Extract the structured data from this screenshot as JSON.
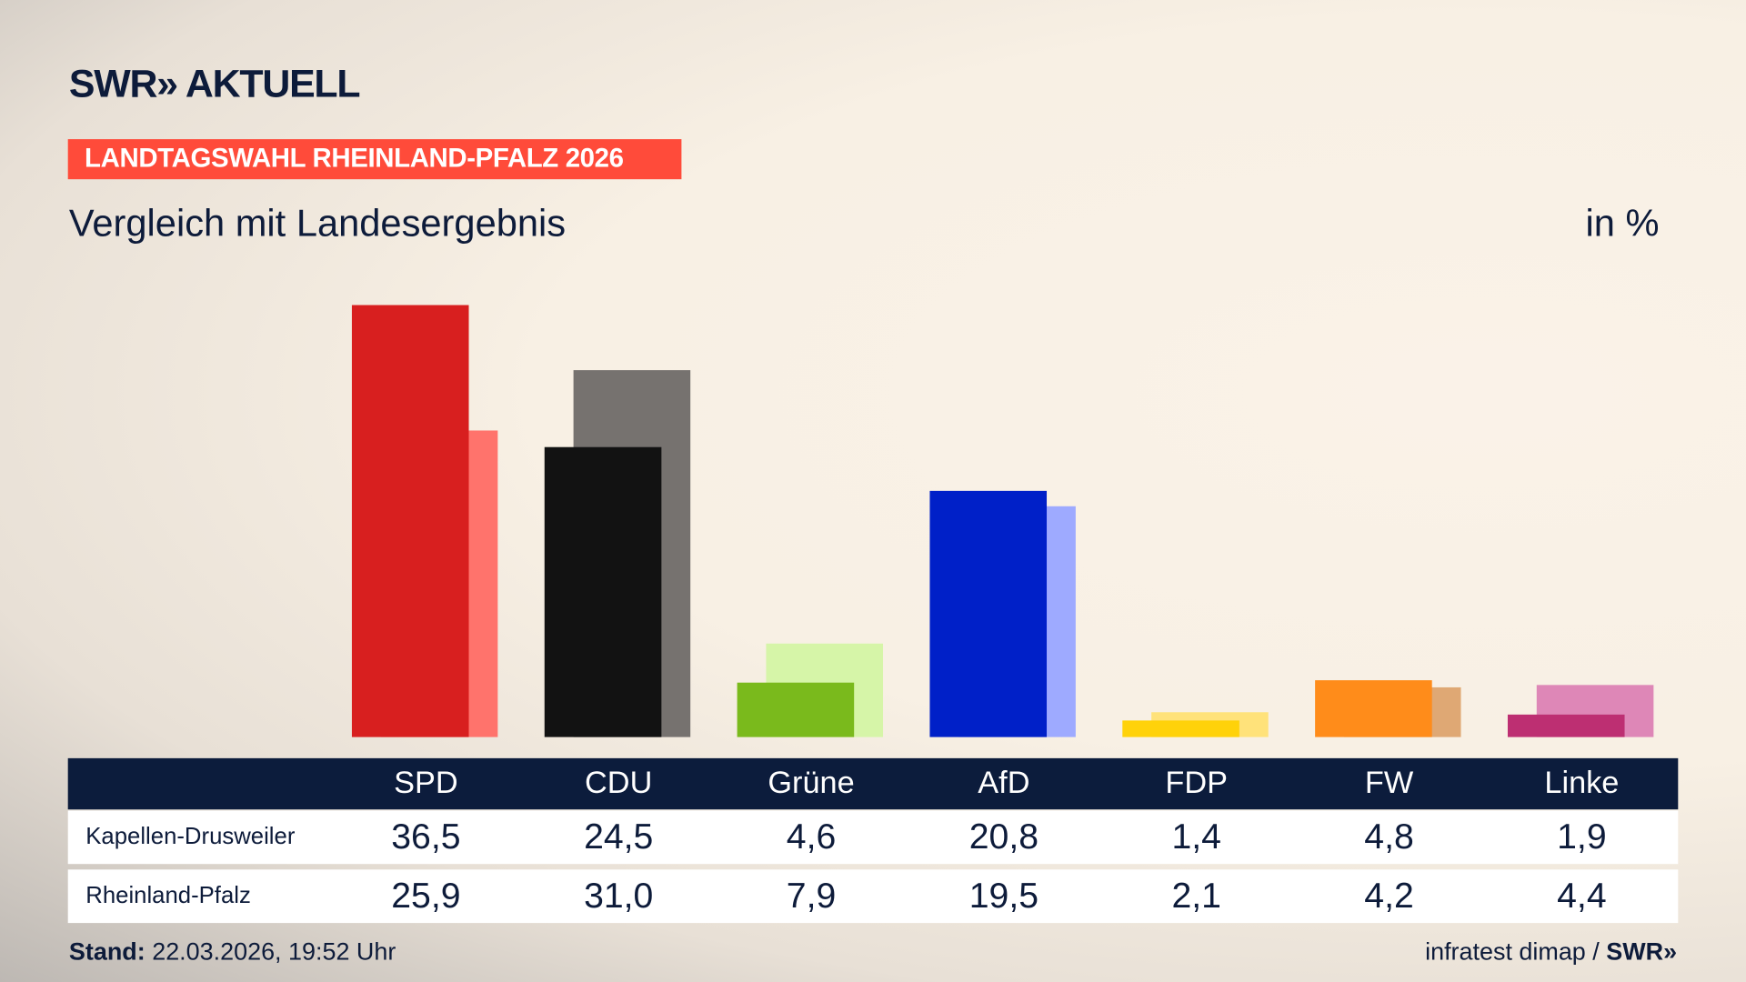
{
  "brand": {
    "logo": "SWR» AKTUELL",
    "source": "infratest dimap",
    "source_sep": " / ",
    "source_logo": "SWR»"
  },
  "tag": "LANDTAGSWAHL RHEINLAND-PFALZ 2026",
  "subtitle": "Vergleich mit Landesergebnis",
  "unit": "in %",
  "stand_label": "Stand:",
  "stand_value": " 22.03.2026, 19:52 Uhr",
  "chart_data": {
    "type": "bar",
    "title": "Vergleich mit Landesergebnis",
    "ylabel": "in %",
    "categories": [
      "SPD",
      "CDU",
      "Grüne",
      "AfD",
      "FDP",
      "FW",
      "Linke"
    ],
    "series": [
      {
        "name": "Kapellen-Drusweiler",
        "values": [
          36.5,
          24.5,
          4.6,
          20.8,
          1.4,
          4.8,
          1.9
        ],
        "labels": [
          "36,5",
          "24,5",
          "4,6",
          "20,8",
          "1,4",
          "4,8",
          "1,9"
        ],
        "colors": [
          "#d81f1f",
          "#121212",
          "#7aba1c",
          "#0020c8",
          "#ffd20a",
          "#ff8c1a",
          "#bd2f72"
        ]
      },
      {
        "name": "Rheinland-Pfalz",
        "values": [
          25.9,
          31.0,
          7.9,
          19.5,
          2.1,
          4.2,
          4.4
        ],
        "labels": [
          "25,9",
          "31,0",
          "7,9",
          "19,5",
          "2,1",
          "4,2",
          "4,4"
        ],
        "colors": [
          "#ff736c",
          "#76726f",
          "#d6f5a8",
          "#9eaaff",
          "#ffe27a",
          "#dfa874",
          "#de87b7"
        ]
      }
    ],
    "ylim": [
      0,
      37
    ],
    "grid": false
  }
}
